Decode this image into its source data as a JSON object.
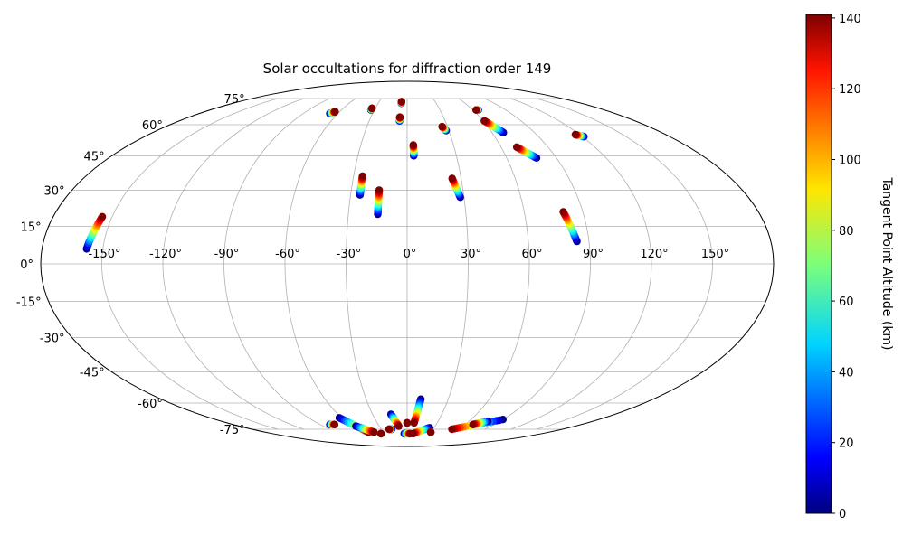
{
  "chart_data": {
    "type": "scatter",
    "projection": "mollweide",
    "title": "Solar occultations for diffraction order 149",
    "grid": true,
    "x_ticks": [
      "-150°",
      "-120°",
      "-90°",
      "-60°",
      "-30°",
      "0°",
      "30°",
      "60°",
      "90°",
      "120°",
      "150°"
    ],
    "x_tick_values": [
      -150,
      -120,
      -90,
      -60,
      -30,
      0,
      30,
      60,
      90,
      120,
      150
    ],
    "y_ticks": [
      "-75°",
      "-60°",
      "-45°",
      "-30°",
      "-15°",
      "0°",
      "15°",
      "30°",
      "45°",
      "60°",
      "75°"
    ],
    "y_tick_values": [
      -75,
      -60,
      -45,
      -30,
      -15,
      0,
      15,
      30,
      45,
      60,
      75
    ],
    "colorbar": {
      "label": "Tangent Point Altitude (km)",
      "colormap": "jet",
      "range": [
        0,
        141
      ],
      "ticks": [
        "0",
        "20",
        "40",
        "60",
        "80",
        "100",
        "120",
        "140"
      ],
      "tick_values": [
        0,
        20,
        40,
        60,
        80,
        100,
        120,
        140
      ]
    },
    "tracks": [
      {
        "start": [
          -158,
          6
        ],
        "end": [
          -155,
          19
        ]
      },
      {
        "start": [
          -67,
          66
        ],
        "end": [
          -64,
          67
        ]
      },
      {
        "start": [
          -33,
          68
        ],
        "end": [
          -33,
          69
        ]
      },
      {
        "start": [
          -25,
          28
        ],
        "end": [
          -25,
          36
        ]
      },
      {
        "start": [
          -15,
          20
        ],
        "end": [
          -15,
          30
        ]
      },
      {
        "start": [
          -6,
          62
        ],
        "end": [
          -6,
          64
        ]
      },
      {
        "start": [
          -6,
          72
        ],
        "end": [
          -6,
          73
        ]
      },
      {
        "start": [
          4,
          45
        ],
        "end": [
          4,
          50
        ]
      },
      {
        "start": [
          28,
          57
        ],
        "end": [
          26,
          59
        ]
      },
      {
        "start": [
          28,
          27
        ],
        "end": [
          25,
          35
        ]
      },
      {
        "start": [
          65,
          68
        ],
        "end": [
          63,
          68
        ]
      },
      {
        "start": [
          68,
          56
        ],
        "end": [
          61,
          62
        ]
      },
      {
        "start": [
          78,
          44
        ],
        "end": [
          70,
          49
        ]
      },
      {
        "start": [
          84,
          9
        ],
        "end": [
          80,
          21
        ]
      },
      {
        "start": [
          121,
          54
        ],
        "end": [
          117,
          55
        ]
      },
      {
        "start": [
          -80,
          -72
        ],
        "end": [
          -75,
          -72
        ]
      },
      {
        "start": [
          -62,
          -68
        ],
        "end": [
          -49,
          -77
        ]
      },
      {
        "start": [
          -55,
          -73
        ],
        "end": [
          -42,
          -77
        ]
      },
      {
        "start": [
          -14,
          -66
        ],
        "end": [
          -9,
          -73
        ]
      },
      {
        "start": [
          -18,
          -75
        ],
        "end": [
          -21,
          -75
        ]
      },
      {
        "start": [
          0,
          -71
        ],
        "end": [
          0,
          -71
        ]
      },
      {
        "start": [
          10,
          -58
        ],
        "end": [
          7,
          -71
        ]
      },
      {
        "start": [
          -4,
          -78
        ],
        "end": [
          4,
          -78
        ]
      },
      {
        "start": [
          25,
          -74
        ],
        "end": [
          8,
          -78
        ]
      },
      {
        "start": [
          90,
          -69
        ],
        "end": [
          52,
          -75
        ]
      },
      {
        "start": [
          78,
          -70
        ],
        "end": [
          68,
          -72
        ]
      },
      {
        "start": [
          -35,
          -78
        ],
        "end": [
          -35,
          -78
        ]
      },
      {
        "start": [
          30,
          -77
        ],
        "end": [
          30,
          -77
        ]
      }
    ]
  }
}
